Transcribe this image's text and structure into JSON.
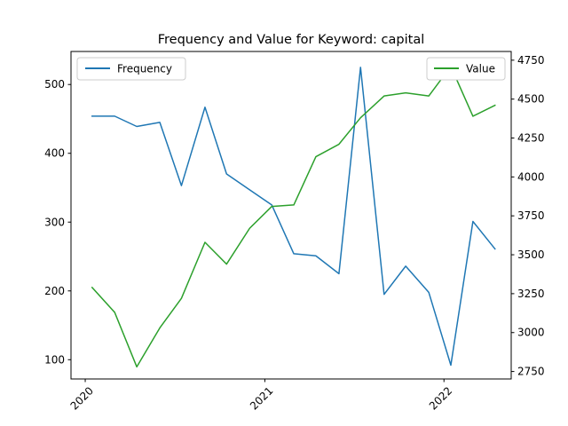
{
  "chart_data": {
    "type": "line",
    "title": "Frequency and Value for Keyword: capital",
    "xlabel": "",
    "ylabel_left": "",
    "ylabel_right": "",
    "x": [
      "2020-01-15",
      "2020-03-01",
      "2020-04-15",
      "2020-06-01",
      "2020-07-15",
      "2020-09-01",
      "2020-10-15",
      "2020-12-01",
      "2021-01-15",
      "2021-03-01",
      "2021-04-15",
      "2021-06-01",
      "2021-07-15",
      "2021-09-01",
      "2021-10-15",
      "2021-12-01",
      "2022-01-15",
      "2022-03-01",
      "2022-04-15"
    ],
    "x_ticks": [
      "2020",
      "2021",
      "2022"
    ],
    "x_tick_dates": [
      "2020-01-01",
      "2021-01-01",
      "2022-01-01"
    ],
    "xlim": [
      "2019-12-03",
      "2022-05-18"
    ],
    "series": [
      {
        "name": "Frequency",
        "axis": "left",
        "color": "#1f77b4",
        "values": [
          454,
          454,
          439,
          445,
          353,
          467,
          370,
          347,
          325,
          254,
          251,
          225,
          525,
          195,
          236,
          198,
          92,
          301,
          261
        ]
      },
      {
        "name": "Value",
        "axis": "right",
        "color": "#2ca02c",
        "values": [
          3290,
          3130,
          2780,
          3030,
          3220,
          3580,
          3440,
          3670,
          3810,
          3820,
          4130,
          4210,
          4380,
          4520,
          4540,
          4520,
          4710,
          4390,
          4460
        ]
      }
    ],
    "ylim_left": [
      72,
      548
    ],
    "ylim_right": [
      2702,
      4806
    ],
    "yticks_left": [
      100,
      200,
      300,
      400,
      500
    ],
    "yticks_right": [
      2750,
      3000,
      3250,
      3500,
      3750,
      4000,
      4250,
      4500,
      4750
    ],
    "legend": [
      {
        "label": "Frequency",
        "placement": "top-left"
      },
      {
        "label": "Value",
        "placement": "top-right"
      }
    ],
    "grid": false
  }
}
